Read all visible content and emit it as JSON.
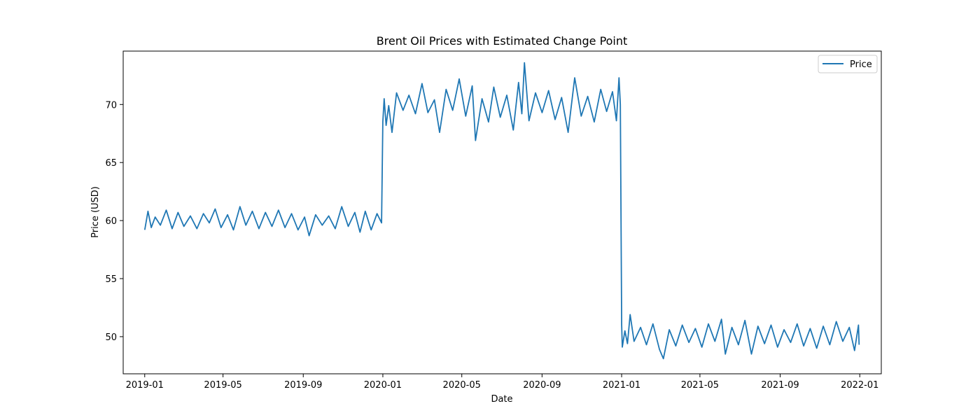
{
  "chart_data": {
    "type": "line",
    "title": "Brent Oil Prices with Estimated Change Point",
    "xlabel": "Date",
    "ylabel": "Price (USD)",
    "xlim": [
      "2018-11-29",
      "2022-02-03"
    ],
    "ylim": [
      46.8,
      74.6
    ],
    "xticks": [
      {
        "date": "2019-01-01",
        "label": "2019-01"
      },
      {
        "date": "2019-05-01",
        "label": "2019-05"
      },
      {
        "date": "2019-09-01",
        "label": "2019-09"
      },
      {
        "date": "2020-01-01",
        "label": "2020-01"
      },
      {
        "date": "2020-05-01",
        "label": "2020-05"
      },
      {
        "date": "2020-09-01",
        "label": "2020-09"
      },
      {
        "date": "2021-01-01",
        "label": "2021-01"
      },
      {
        "date": "2021-05-01",
        "label": "2021-05"
      },
      {
        "date": "2021-09-01",
        "label": "2021-09"
      },
      {
        "date": "2022-01-01",
        "label": "2022-01"
      }
    ],
    "yticks": [
      {
        "value": 50,
        "label": "50"
      },
      {
        "value": 55,
        "label": "55"
      },
      {
        "value": 60,
        "label": "60"
      },
      {
        "value": 65,
        "label": "65"
      },
      {
        "value": 70,
        "label": "70"
      }
    ],
    "grid": false,
    "legend": {
      "position": "top-right"
    },
    "series": [
      {
        "name": "Price",
        "color": "#1f77b4",
        "points": [
          [
            "2019-01-01",
            59.2
          ],
          [
            "2019-01-06",
            60.8
          ],
          [
            "2019-01-11",
            59.4
          ],
          [
            "2019-01-17",
            60.3
          ],
          [
            "2019-01-25",
            59.6
          ],
          [
            "2019-02-03",
            60.9
          ],
          [
            "2019-02-12",
            59.3
          ],
          [
            "2019-02-21",
            60.7
          ],
          [
            "2019-03-02",
            59.5
          ],
          [
            "2019-03-12",
            60.4
          ],
          [
            "2019-03-22",
            59.3
          ],
          [
            "2019-04-01",
            60.6
          ],
          [
            "2019-04-10",
            59.8
          ],
          [
            "2019-04-19",
            61.0
          ],
          [
            "2019-04-28",
            59.4
          ],
          [
            "2019-05-08",
            60.5
          ],
          [
            "2019-05-17",
            59.2
          ],
          [
            "2019-05-27",
            61.2
          ],
          [
            "2019-06-05",
            59.6
          ],
          [
            "2019-06-15",
            60.8
          ],
          [
            "2019-06-25",
            59.3
          ],
          [
            "2019-07-05",
            60.7
          ],
          [
            "2019-07-15",
            59.5
          ],
          [
            "2019-07-25",
            60.9
          ],
          [
            "2019-08-04",
            59.4
          ],
          [
            "2019-08-14",
            60.6
          ],
          [
            "2019-08-24",
            59.2
          ],
          [
            "2019-09-03",
            60.3
          ],
          [
            "2019-09-10",
            58.7
          ],
          [
            "2019-09-20",
            60.5
          ],
          [
            "2019-09-30",
            59.6
          ],
          [
            "2019-10-10",
            60.4
          ],
          [
            "2019-10-20",
            59.3
          ],
          [
            "2019-10-30",
            61.2
          ],
          [
            "2019-11-09",
            59.5
          ],
          [
            "2019-11-19",
            60.7
          ],
          [
            "2019-11-27",
            59.0
          ],
          [
            "2019-12-05",
            60.8
          ],
          [
            "2019-12-14",
            59.2
          ],
          [
            "2019-12-23",
            60.6
          ],
          [
            "2019-12-30",
            59.8
          ],
          [
            "2020-01-01",
            68.5
          ],
          [
            "2020-01-03",
            70.5
          ],
          [
            "2020-01-06",
            68.2
          ],
          [
            "2020-01-10",
            69.9
          ],
          [
            "2020-01-15",
            67.6
          ],
          [
            "2020-01-22",
            71.0
          ],
          [
            "2020-02-01",
            69.5
          ],
          [
            "2020-02-10",
            70.8
          ],
          [
            "2020-02-20",
            69.2
          ],
          [
            "2020-03-01",
            71.8
          ],
          [
            "2020-03-10",
            69.3
          ],
          [
            "2020-03-20",
            70.4
          ],
          [
            "2020-03-28",
            67.6
          ],
          [
            "2020-04-07",
            71.3
          ],
          [
            "2020-04-17",
            69.5
          ],
          [
            "2020-04-27",
            72.2
          ],
          [
            "2020-05-07",
            69.0
          ],
          [
            "2020-05-17",
            71.6
          ],
          [
            "2020-05-22",
            66.9
          ],
          [
            "2020-06-01",
            70.5
          ],
          [
            "2020-06-11",
            68.5
          ],
          [
            "2020-06-19",
            71.5
          ],
          [
            "2020-06-29",
            68.9
          ],
          [
            "2020-07-09",
            70.8
          ],
          [
            "2020-07-19",
            67.8
          ],
          [
            "2020-07-27",
            71.9
          ],
          [
            "2020-08-01",
            69.2
          ],
          [
            "2020-08-05",
            73.6
          ],
          [
            "2020-08-12",
            68.6
          ],
          [
            "2020-08-22",
            71.0
          ],
          [
            "2020-09-01",
            69.3
          ],
          [
            "2020-09-11",
            71.2
          ],
          [
            "2020-09-21",
            68.7
          ],
          [
            "2020-10-01",
            70.6
          ],
          [
            "2020-10-11",
            67.6
          ],
          [
            "2020-10-21",
            72.3
          ],
          [
            "2020-10-31",
            69.0
          ],
          [
            "2020-11-10",
            70.7
          ],
          [
            "2020-11-20",
            68.5
          ],
          [
            "2020-11-30",
            71.3
          ],
          [
            "2020-12-09",
            69.4
          ],
          [
            "2020-12-18",
            71.1
          ],
          [
            "2020-12-24",
            68.6
          ],
          [
            "2020-12-28",
            72.3
          ],
          [
            "2020-12-30",
            70.0
          ],
          [
            "2021-01-01",
            51.0
          ],
          [
            "2021-01-02",
            49.1
          ],
          [
            "2021-01-06",
            50.5
          ],
          [
            "2021-01-10",
            49.4
          ],
          [
            "2021-01-14",
            51.9
          ],
          [
            "2021-01-20",
            49.6
          ],
          [
            "2021-01-30",
            50.8
          ],
          [
            "2021-02-08",
            49.3
          ],
          [
            "2021-02-18",
            51.1
          ],
          [
            "2021-02-28",
            48.9
          ],
          [
            "2021-03-06",
            48.1
          ],
          [
            "2021-03-15",
            50.6
          ],
          [
            "2021-03-25",
            49.2
          ],
          [
            "2021-04-04",
            51.0
          ],
          [
            "2021-04-14",
            49.5
          ],
          [
            "2021-04-24",
            50.7
          ],
          [
            "2021-05-04",
            49.1
          ],
          [
            "2021-05-14",
            51.1
          ],
          [
            "2021-05-24",
            49.6
          ],
          [
            "2021-06-03",
            51.5
          ],
          [
            "2021-06-09",
            48.5
          ],
          [
            "2021-06-19",
            50.8
          ],
          [
            "2021-06-29",
            49.3
          ],
          [
            "2021-07-09",
            51.4
          ],
          [
            "2021-07-19",
            48.5
          ],
          [
            "2021-07-29",
            50.9
          ],
          [
            "2021-08-08",
            49.4
          ],
          [
            "2021-08-18",
            51.0
          ],
          [
            "2021-08-28",
            49.1
          ],
          [
            "2021-09-07",
            50.6
          ],
          [
            "2021-09-17",
            49.5
          ],
          [
            "2021-09-27",
            51.1
          ],
          [
            "2021-10-07",
            49.2
          ],
          [
            "2021-10-17",
            50.7
          ],
          [
            "2021-10-27",
            49.0
          ],
          [
            "2021-11-06",
            50.9
          ],
          [
            "2021-11-16",
            49.3
          ],
          [
            "2021-11-26",
            51.3
          ],
          [
            "2021-12-06",
            49.6
          ],
          [
            "2021-12-16",
            50.8
          ],
          [
            "2021-12-24",
            48.8
          ],
          [
            "2021-12-30",
            51.0
          ],
          [
            "2021-12-31",
            49.3
          ]
        ]
      }
    ]
  }
}
